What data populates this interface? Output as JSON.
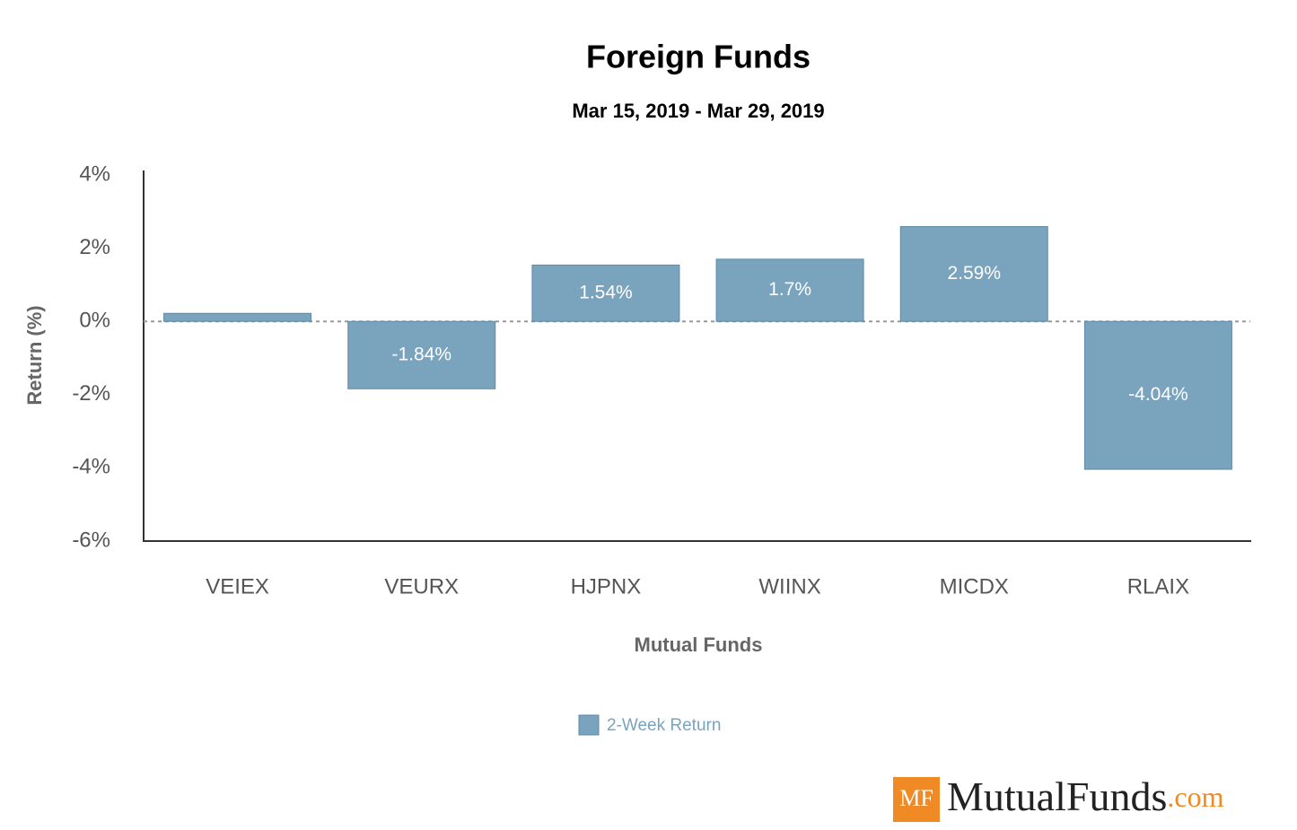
{
  "chart_data": {
    "type": "bar",
    "title": "Foreign Funds",
    "subtitle": "Mar 15, 2019 - Mar 29, 2019",
    "x_label": "Mutual Funds",
    "y_label": "Return (%)",
    "categories": [
      "VEIEX",
      "VEURX",
      "HJPNX",
      "WIINX",
      "MICDX",
      "RLAIX"
    ],
    "series": [
      {
        "name": "2-Week Return",
        "color": "#7aa3be",
        "values": [
          0.22,
          -1.84,
          1.54,
          1.7,
          2.59,
          -4.04
        ],
        "value_labels": [
          null,
          "-1.84%",
          "1.54%",
          "1.7%",
          "2.59%",
          "-4.04%"
        ]
      }
    ],
    "ylim": [
      -6,
      4
    ],
    "yticks": [
      {
        "value": -6,
        "label": "-6%"
      },
      {
        "value": -4,
        "label": "-4%"
      },
      {
        "value": -2,
        "label": "-2%"
      },
      {
        "value": 0,
        "label": "0%"
      },
      {
        "value": 2,
        "label": "2%"
      },
      {
        "value": 4,
        "label": "4%"
      }
    ],
    "legend": "bottom"
  },
  "branding": {
    "badge": "MF",
    "name": "MutualFunds",
    "suffix": ".com"
  }
}
